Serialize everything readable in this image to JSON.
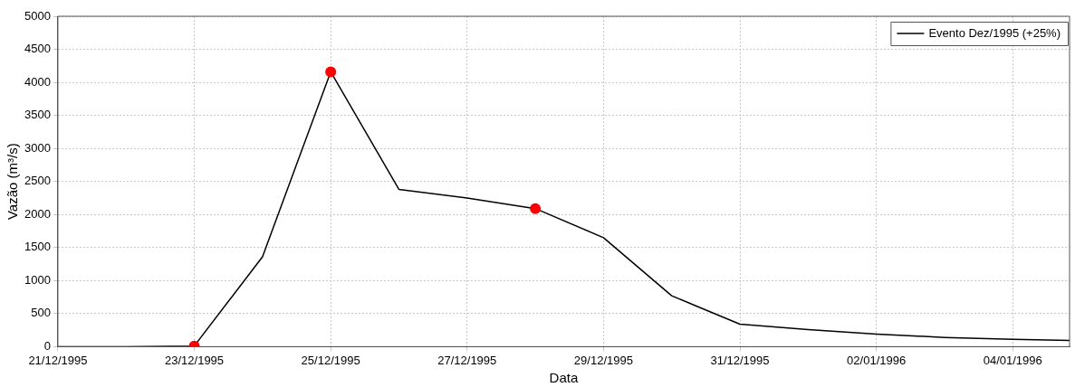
{
  "chart_data": {
    "type": "line",
    "xlabel": "Data",
    "ylabel": "Vazão (m³/s)",
    "series": [
      {
        "name": "Evento Dez/1995 (+25%)",
        "color": "#000000",
        "marker": "none",
        "x": [
          "1995-12-21",
          "1995-12-22",
          "1995-12-23",
          "1995-12-24",
          "1995-12-25",
          "1995-12-26",
          "1995-12-27",
          "1995-12-28",
          "1995-12-29",
          "1995-12-30",
          "1995-12-31",
          "1996-01-01",
          "1996-01-02",
          "1996-01-03",
          "1996-01-04",
          "1996-01-04T20:00"
        ],
        "values": [
          0,
          0,
          10,
          1360,
          4160,
          2380,
          2250,
          2090,
          1650,
          770,
          340,
          260,
          190,
          140,
          110,
          95
        ]
      },
      {
        "type": "scatter",
        "color": "#ff0000",
        "marker": "circle",
        "x": [
          "1995-12-23",
          "1995-12-25",
          "1995-12-28"
        ],
        "values": [
          10,
          4160,
          2090
        ]
      }
    ],
    "xlim": [
      "1995-12-21",
      "1996-01-04T20:00"
    ],
    "xticks": [
      {
        "value": "1995-12-21",
        "label": "21/12/1995"
      },
      {
        "value": "1995-12-23",
        "label": "23/12/1995"
      },
      {
        "value": "1995-12-25",
        "label": "25/12/1995"
      },
      {
        "value": "1995-12-27",
        "label": "27/12/1995"
      },
      {
        "value": "1995-12-29",
        "label": "29/12/1995"
      },
      {
        "value": "1995-12-31",
        "label": "31/12/1995"
      },
      {
        "value": "1996-01-02",
        "label": "02/01/1996"
      },
      {
        "value": "1996-01-04",
        "label": "04/01/1996"
      }
    ],
    "ylim": [
      0,
      5000
    ],
    "yticks": [
      0,
      500,
      1000,
      1500,
      2000,
      2500,
      3000,
      3500,
      4000,
      4500,
      5000
    ],
    "grid": true,
    "legend": "top right",
    "line_style": "solid"
  }
}
